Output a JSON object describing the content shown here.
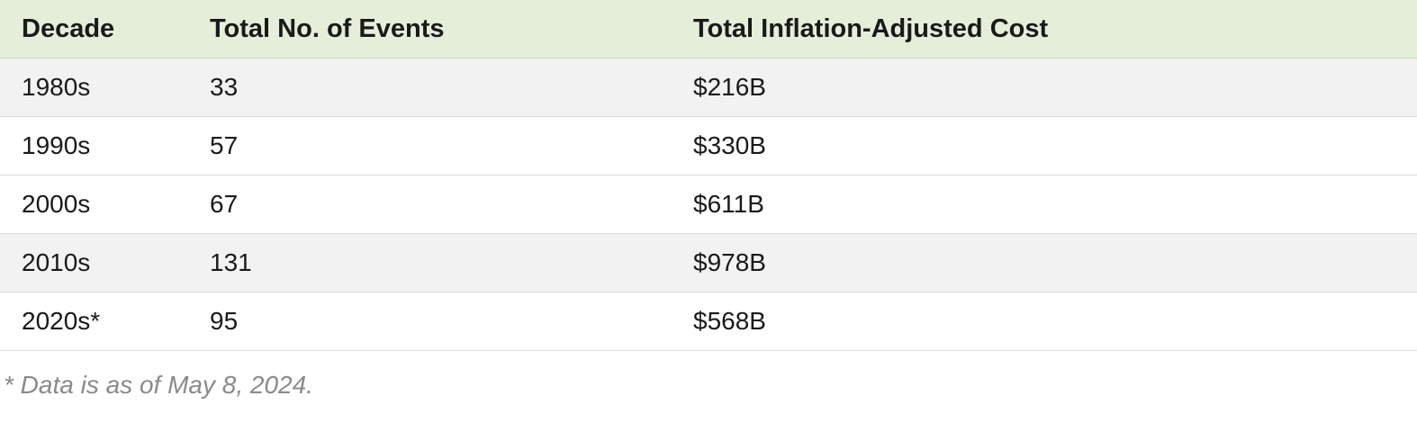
{
  "chart_data": {
    "type": "table",
    "title": "",
    "columns": [
      "Decade",
      "Total No. of Events",
      "Total Inflation-Adjusted Cost"
    ],
    "rows": [
      [
        "1980s",
        "33",
        "$216B"
      ],
      [
        "1990s",
        "57",
        "$330B"
      ],
      [
        "2000s",
        "67",
        "$611B"
      ],
      [
        "2010s",
        "131",
        "$978B"
      ],
      [
        "2020s*",
        "95",
        "$568B"
      ]
    ],
    "footnote": "* Data is as of May 8, 2024."
  },
  "colors": {
    "header_bg": "#e5eed9",
    "stripe_bg": "#f2f2f2",
    "row_border": "#dcdcdc",
    "footnote_text": "#8a8a8a",
    "body_text": "#1a1a1a"
  }
}
